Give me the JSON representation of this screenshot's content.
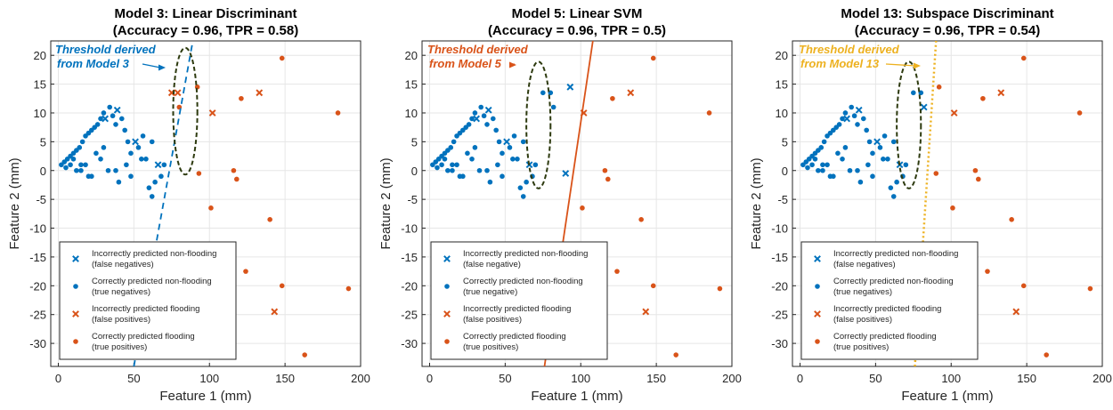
{
  "charts": [
    {
      "title_line1": "Model 3: Linear Discriminant",
      "title_line2": "(Accuracy = 0.96, TPR = 0.58)",
      "xlabel": "Feature 1 (mm)",
      "ylabel": "Feature 2 (mm)",
      "annotation_line1": "Threshold derived",
      "annotation_line2": "from Model 3",
      "threshold_color": "#0072BD",
      "threshold_style": "dashed",
      "threshold_line": [
        [
          50,
          -34
        ],
        [
          89,
          22.5
        ]
      ],
      "legend": [
        {
          "line1": "Incorrectly predicted non-flooding",
          "line2": "(false negatives)",
          "marker": "x",
          "color": "#0072BD"
        },
        {
          "line1": "Correctly predicted non-flooding",
          "line2": "(true negatives)",
          "marker": "dot",
          "color": "#0072BD"
        },
        {
          "line1": "Incorrectly predicted flooding",
          "line2": "(false positives)",
          "marker": "x",
          "color": "#D95319"
        },
        {
          "line1": "Correctly predicted flooding",
          "line2": "(true positives)",
          "marker": "dot",
          "color": "#D95319"
        }
      ]
    },
    {
      "title_line1": "Model 5: Linear SVM",
      "title_line2": "(Accuracy = 0.96, TPR = 0.5)",
      "xlabel": "Feature 1 (mm)",
      "ylabel": "Feature 2 (mm)",
      "annotation_line1": "Threshold derived",
      "annotation_line2": "from Model 5",
      "threshold_color": "#D95319",
      "threshold_style": "solid",
      "threshold_line": [
        [
          76,
          -34
        ],
        [
          108,
          22.5
        ]
      ],
      "legend": [
        {
          "line1": "Incorrectly predicted non-flooding",
          "line2": "(false negative)",
          "marker": "x",
          "color": "#0072BD"
        },
        {
          "line1": "Correctly predicted non-flooding",
          "line2": "(true negative)",
          "marker": "dot",
          "color": "#0072BD"
        },
        {
          "line1": "Incorrectly predicted flooding",
          "line2": "(false positives)",
          "marker": "x",
          "color": "#D95319"
        },
        {
          "line1": "Correctly predicted flooding",
          "line2": "(true positives)",
          "marker": "dot",
          "color": "#D95319"
        }
      ]
    },
    {
      "title_line1": "Model 13: Subspace Discriminant",
      "title_line2": "(Accuracy = 0.96, TPR = 0.54)",
      "xlabel": "Feature 1 (mm)",
      "ylabel": "Feature 2 (mm)",
      "annotation_line1": "Threshold derived",
      "annotation_line2": "from Model 13",
      "threshold_color": "#EDB120",
      "threshold_style": "dotted",
      "threshold_line": [
        [
          76,
          -34
        ],
        [
          90,
          22.5
        ]
      ],
      "legend": [
        {
          "line1": "Incorrectly predicted non-flooding",
          "line2": "(false negatives)",
          "marker": "x",
          "color": "#0072BD"
        },
        {
          "line1": "Correctly predicted non-flooding",
          "line2": "(true negatives)",
          "marker": "dot",
          "color": "#0072BD"
        },
        {
          "line1": "Incorrectly predicted flooding",
          "line2": "(false positives)",
          "marker": "x",
          "color": "#D95319"
        },
        {
          "line1": "Correctly predicted flooding",
          "line2": "(true positives)",
          "marker": "dot",
          "color": "#D95319"
        }
      ]
    }
  ],
  "chart_data": [
    {
      "type": "scatter",
      "title": "Model 3: Linear Discriminant (Accuracy = 0.96, TPR = 0.58)",
      "xlabel": "Feature 1 (mm)",
      "ylabel": "Feature 2 (mm)",
      "xlim": [
        -5,
        200
      ],
      "ylim": [
        -34,
        22.5
      ],
      "xticks": [
        0,
        50,
        100,
        150,
        200
      ],
      "yticks": [
        -30,
        -25,
        -20,
        -15,
        -10,
        -5,
        0,
        5,
        10,
        15,
        20
      ],
      "grid": true,
      "legend_position": "bottom-left",
      "series": [
        {
          "name": "Incorrectly predicted non-flooding (false negatives)",
          "marker": "x",
          "color": "#0072BD",
          "x": [
            31,
            39,
            51,
            66
          ],
          "y": [
            9,
            10.5,
            5,
            1
          ]
        },
        {
          "name": "Correctly predicted non-flooding (true negatives)",
          "marker": "dot",
          "color": "#0072BD",
          "x": [
            2,
            4,
            6,
            8,
            10,
            12,
            14,
            16,
            18,
            20,
            22,
            24,
            26,
            28,
            30,
            34,
            36,
            38,
            42,
            44,
            46,
            48,
            53,
            56,
            58,
            60,
            62,
            64,
            68,
            70,
            12,
            18,
            22,
            28,
            33,
            40,
            45,
            15,
            20,
            25,
            30,
            38,
            48,
            55,
            62,
            5,
            8,
            10,
            15
          ],
          "y": [
            1,
            1.5,
            2,
            2.5,
            3,
            3.5,
            4,
            5,
            6,
            6.5,
            7,
            7.5,
            8,
            9,
            10,
            11,
            9.5,
            8,
            9,
            7,
            5,
            3,
            4,
            6,
            2,
            -3,
            -4.5,
            -2,
            -1,
            1,
            0,
            1,
            -1,
            2,
            0,
            -2,
            1,
            0,
            -1,
            3,
            4,
            0,
            -1,
            2,
            5,
            0.5,
            1,
            2,
            1
          ]
        },
        {
          "name": "Incorrectly predicted flooding (false positives)",
          "marker": "x",
          "color": "#D95319",
          "x": [
            75,
            79,
            102,
            133,
            143
          ],
          "y": [
            13.5,
            13.5,
            10,
            13.5,
            -24.5
          ]
        },
        {
          "name": "Correctly predicted flooding (true positives)",
          "marker": "dot",
          "color": "#D95319",
          "x": [
            80,
            92,
            121,
            148,
            185,
            116,
            118,
            140,
            124,
            148,
            163,
            192,
            93,
            101
          ],
          "y": [
            11,
            14.5,
            12.5,
            19.5,
            10,
            0,
            -1.5,
            -8.5,
            -17.5,
            -20,
            -32,
            -20.5,
            -0.5,
            -6.5
          ]
        }
      ]
    },
    {
      "type": "scatter",
      "title": "Model 5: Linear SVM (Accuracy = 0.96, TPR = 0.5)",
      "xlabel": "Feature 1 (mm)",
      "ylabel": "Feature 2 (mm)",
      "xlim": [
        -5,
        200
      ],
      "ylim": [
        -34,
        22.5
      ],
      "xticks": [
        0,
        50,
        100,
        150,
        200
      ],
      "yticks": [
        -30,
        -25,
        -20,
        -15,
        -10,
        -5,
        0,
        5,
        10,
        15,
        20
      ],
      "grid": true,
      "legend_position": "bottom-left",
      "series": [
        {
          "name": "Incorrectly predicted non-flooding (false negative)",
          "marker": "x",
          "color": "#0072BD",
          "x": [
            31,
            39,
            51,
            66,
            93,
            90
          ],
          "y": [
            9,
            10.5,
            5,
            1,
            14.5,
            -0.5
          ]
        },
        {
          "name": "Correctly predicted non-flooding (true negative)",
          "marker": "dot",
          "color": "#0072BD",
          "x": [
            2,
            4,
            6,
            8,
            10,
            12,
            14,
            16,
            18,
            20,
            22,
            24,
            26,
            28,
            30,
            34,
            36,
            38,
            42,
            44,
            46,
            48,
            53,
            56,
            58,
            60,
            62,
            64,
            68,
            70,
            12,
            18,
            22,
            28,
            33,
            40,
            45,
            15,
            20,
            25,
            30,
            38,
            48,
            55,
            62,
            5,
            8,
            10,
            15,
            75,
            80,
            82
          ],
          "y": [
            1,
            1.5,
            2,
            2.5,
            3,
            3.5,
            4,
            5,
            6,
            6.5,
            7,
            7.5,
            8,
            9,
            10,
            11,
            9.5,
            8,
            9,
            7,
            5,
            3,
            4,
            6,
            2,
            -3,
            -4.5,
            -2,
            -1,
            1,
            0,
            1,
            -1,
            2,
            0,
            -2,
            1,
            0,
            -1,
            3,
            4,
            0,
            -1,
            2,
            5,
            0.5,
            1,
            2,
            1,
            13.5,
            13.5,
            11
          ]
        },
        {
          "name": "Incorrectly predicted flooding (false positives)",
          "marker": "x",
          "color": "#D95319",
          "x": [
            102,
            133,
            143
          ],
          "y": [
            10,
            13.5,
            -24.5
          ]
        },
        {
          "name": "Correctly predicted flooding (true positives)",
          "marker": "dot",
          "color": "#D95319",
          "x": [
            121,
            148,
            185,
            116,
            118,
            140,
            124,
            148,
            163,
            192,
            101
          ],
          "y": [
            12.5,
            19.5,
            10,
            0,
            -1.5,
            -8.5,
            -17.5,
            -20,
            -32,
            -20.5,
            -6.5
          ]
        }
      ]
    },
    {
      "type": "scatter",
      "title": "Model 13: Subspace Discriminant (Accuracy = 0.96, TPR = 0.54)",
      "xlabel": "Feature 1 (mm)",
      "ylabel": "Feature 2 (mm)",
      "xlim": [
        -5,
        200
      ],
      "ylim": [
        -34,
        22.5
      ],
      "xticks": [
        0,
        50,
        100,
        150,
        200
      ],
      "yticks": [
        -30,
        -25,
        -20,
        -15,
        -10,
        -5,
        0,
        5,
        10,
        15,
        20
      ],
      "grid": true,
      "legend_position": "bottom-left",
      "series": [
        {
          "name": "Incorrectly predicted non-flooding (false negatives)",
          "marker": "x",
          "color": "#0072BD",
          "x": [
            31,
            39,
            51,
            66,
            82
          ],
          "y": [
            9,
            10.5,
            5,
            1,
            11
          ]
        },
        {
          "name": "Correctly predicted non-flooding (true negatives)",
          "marker": "dot",
          "color": "#0072BD",
          "x": [
            2,
            4,
            6,
            8,
            10,
            12,
            14,
            16,
            18,
            20,
            22,
            24,
            26,
            28,
            30,
            34,
            36,
            38,
            42,
            44,
            46,
            48,
            53,
            56,
            58,
            60,
            62,
            64,
            68,
            70,
            12,
            18,
            22,
            28,
            33,
            40,
            45,
            15,
            20,
            25,
            30,
            38,
            48,
            55,
            62,
            5,
            8,
            10,
            15,
            75,
            80
          ],
          "y": [
            1,
            1.5,
            2,
            2.5,
            3,
            3.5,
            4,
            5,
            6,
            6.5,
            7,
            7.5,
            8,
            9,
            10,
            11,
            9.5,
            8,
            9,
            7,
            5,
            3,
            4,
            6,
            2,
            -3,
            -4.5,
            -2,
            -1,
            1,
            0,
            1,
            -1,
            2,
            0,
            -2,
            1,
            0,
            -1,
            3,
            4,
            0,
            -1,
            2,
            5,
            0.5,
            1,
            2,
            1,
            13.5,
            13.5
          ]
        },
        {
          "name": "Incorrectly predicted flooding (false positives)",
          "marker": "x",
          "color": "#D95319",
          "x": [
            102,
            133,
            143
          ],
          "y": [
            10,
            13.5,
            -24.5
          ]
        },
        {
          "name": "Correctly predicted flooding (true positives)",
          "marker": "dot",
          "color": "#D95319",
          "x": [
            92,
            121,
            148,
            185,
            116,
            118,
            140,
            124,
            148,
            163,
            192,
            90,
            101
          ],
          "y": [
            14.5,
            12.5,
            19.5,
            10,
            0,
            -1.5,
            -8.5,
            -17.5,
            -20,
            -32,
            -20.5,
            -0.5,
            -6.5
          ]
        }
      ]
    }
  ]
}
